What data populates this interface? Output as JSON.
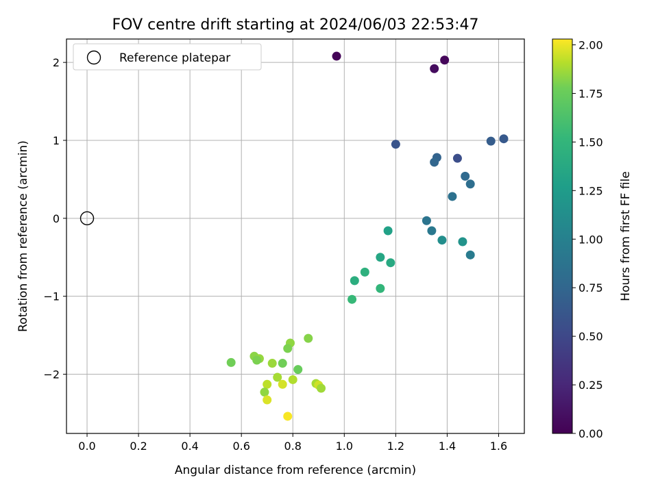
{
  "chart_data": {
    "type": "scatter",
    "title": "FOV centre drift starting at 2024/06/03 22:53:47",
    "xlabel": "Angular distance from reference (arcmin)",
    "ylabel": "Rotation from reference (arcmin)",
    "xlim": [
      -0.08,
      1.7
    ],
    "ylim": [
      -2.76,
      2.3
    ],
    "x_ticks": [
      0.0,
      0.2,
      0.4,
      0.6,
      0.8,
      1.0,
      1.2,
      1.4,
      1.6
    ],
    "x_tick_labels": [
      "0.0",
      "0.2",
      "0.4",
      "0.6",
      "0.8",
      "1.0",
      "1.2",
      "1.4",
      "1.6"
    ],
    "y_ticks": [
      -2,
      -1,
      0,
      1,
      2
    ],
    "y_tick_labels": [
      "−2",
      "−1",
      "0",
      "1",
      "2"
    ],
    "grid": true,
    "legend": {
      "placement": "top-left",
      "entries": [
        "Reference platepar"
      ]
    },
    "reference_point": {
      "x": 0.0,
      "y": 0.0,
      "marker": "open-circle"
    },
    "colorbar": {
      "label": "Hours from first FF file",
      "colormap": "viridis",
      "range": [
        0.0,
        2.03
      ],
      "ticks": [
        0.0,
        0.25,
        0.5,
        0.75,
        1.0,
        1.25,
        1.5,
        1.75,
        2.0
      ],
      "tick_labels": [
        "0.00",
        "0.25",
        "0.50",
        "0.75",
        "1.00",
        "1.25",
        "1.50",
        "1.75",
        "2.00"
      ]
    },
    "points": [
      {
        "x": 0.97,
        "y": 2.08,
        "c": 0.02
      },
      {
        "x": 1.39,
        "y": 2.03,
        "c": 0.04
      },
      {
        "x": 1.35,
        "y": 1.92,
        "c": 0.07
      },
      {
        "x": 1.2,
        "y": 0.95,
        "c": 0.6
      },
      {
        "x": 1.62,
        "y": 1.02,
        "c": 0.64
      },
      {
        "x": 1.57,
        "y": 0.99,
        "c": 0.67
      },
      {
        "x": 1.44,
        "y": 0.77,
        "c": 0.55
      },
      {
        "x": 1.36,
        "y": 0.78,
        "c": 0.72
      },
      {
        "x": 1.35,
        "y": 0.72,
        "c": 0.75
      },
      {
        "x": 1.47,
        "y": 0.54,
        "c": 0.78
      },
      {
        "x": 1.49,
        "y": 0.44,
        "c": 0.82
      },
      {
        "x": 1.42,
        "y": 0.28,
        "c": 0.85
      },
      {
        "x": 1.32,
        "y": -0.03,
        "c": 0.88
      },
      {
        "x": 1.34,
        "y": -0.16,
        "c": 0.92
      },
      {
        "x": 1.49,
        "y": -0.47,
        "c": 0.95
      },
      {
        "x": 1.38,
        "y": -0.28,
        "c": 1.12
      },
      {
        "x": 1.46,
        "y": -0.3,
        "c": 1.17
      },
      {
        "x": 1.17,
        "y": -0.16,
        "c": 1.3
      },
      {
        "x": 1.14,
        "y": -0.5,
        "c": 1.35
      },
      {
        "x": 1.18,
        "y": -0.57,
        "c": 1.38
      },
      {
        "x": 1.04,
        "y": -0.8,
        "c": 1.42
      },
      {
        "x": 1.08,
        "y": -0.69,
        "c": 1.45
      },
      {
        "x": 1.14,
        "y": -0.9,
        "c": 1.5
      },
      {
        "x": 1.03,
        "y": -1.04,
        "c": 1.53
      },
      {
        "x": 0.86,
        "y": -1.54,
        "c": 1.82
      },
      {
        "x": 0.79,
        "y": -1.6,
        "c": 1.84
      },
      {
        "x": 0.78,
        "y": -1.67,
        "c": 1.8
      },
      {
        "x": 0.56,
        "y": -1.85,
        "c": 1.78
      },
      {
        "x": 0.65,
        "y": -1.77,
        "c": 1.83
      },
      {
        "x": 0.67,
        "y": -1.8,
        "c": 1.85
      },
      {
        "x": 0.66,
        "y": -1.82,
        "c": 1.8
      },
      {
        "x": 0.72,
        "y": -1.86,
        "c": 1.86
      },
      {
        "x": 0.76,
        "y": -1.86,
        "c": 1.78
      },
      {
        "x": 0.82,
        "y": -1.94,
        "c": 1.75
      },
      {
        "x": 0.74,
        "y": -2.04,
        "c": 1.88
      },
      {
        "x": 0.8,
        "y": -2.07,
        "c": 1.9
      },
      {
        "x": 0.7,
        "y": -2.13,
        "c": 1.92
      },
      {
        "x": 0.76,
        "y": -2.13,
        "c": 1.96
      },
      {
        "x": 0.69,
        "y": -2.23,
        "c": 1.84
      },
      {
        "x": 0.7,
        "y": -2.33,
        "c": 1.97
      },
      {
        "x": 0.89,
        "y": -2.12,
        "c": 1.88
      },
      {
        "x": 0.9,
        "y": -2.14,
        "c": 1.95
      },
      {
        "x": 0.91,
        "y": -2.18,
        "c": 1.87
      },
      {
        "x": 0.78,
        "y": -2.54,
        "c": 2.02
      }
    ]
  }
}
